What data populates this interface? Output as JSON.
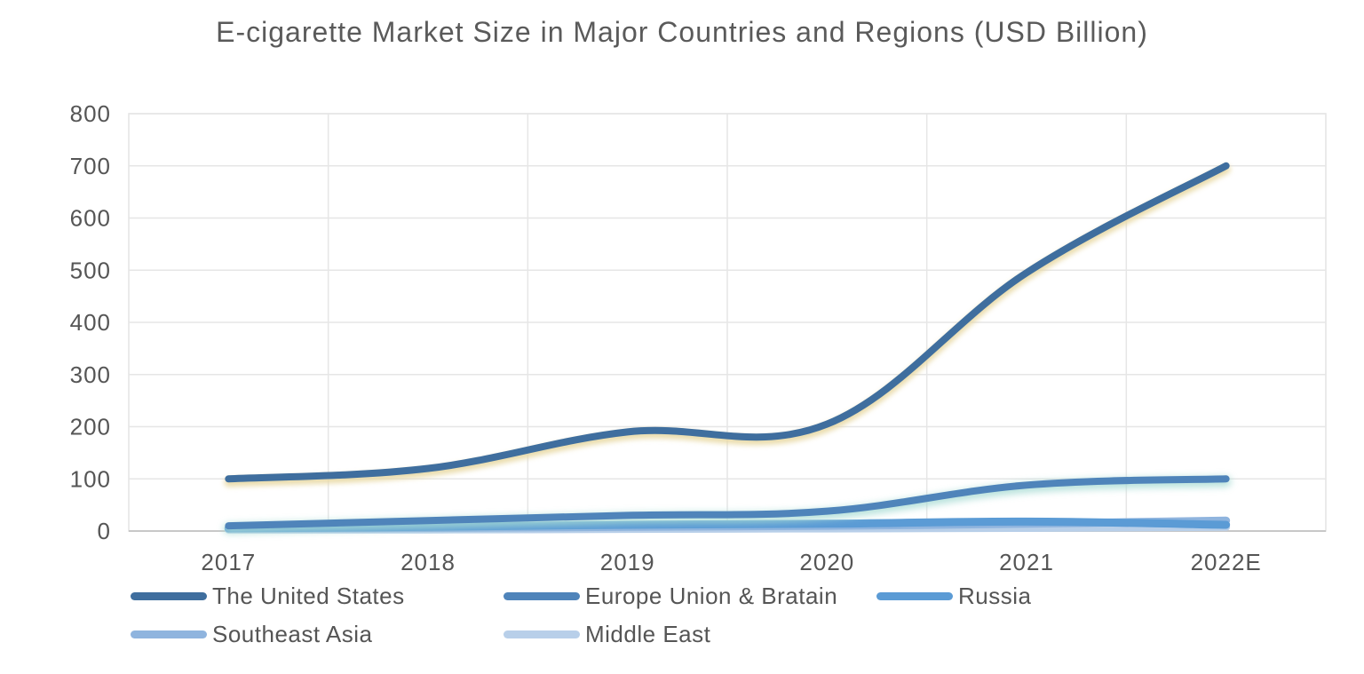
{
  "chart_data": {
    "type": "line",
    "title": "E-cigarette Market Size in Major Countries and Regions (USD Billion)",
    "xlabel": "",
    "ylabel": "",
    "categories": [
      "2017",
      "2018",
      "2019",
      "2020",
      "2021",
      "2022E"
    ],
    "ylim": [
      0,
      800
    ],
    "yticks": [
      0,
      100,
      200,
      300,
      400,
      500,
      600,
      700,
      800
    ],
    "grid": true,
    "legend_position": "bottom",
    "series": [
      {
        "name": "The United States",
        "color": "#3f6e9e",
        "values": [
          100,
          120,
          190,
          205,
          495,
          700
        ]
      },
      {
        "name": "Europe Union & Bratain",
        "color": "#4f84ba",
        "values": [
          10,
          20,
          30,
          38,
          88,
          100
        ]
      },
      {
        "name": "Russia",
        "color": "#5b9bd5",
        "values": [
          5,
          8,
          12,
          14,
          18,
          12
        ]
      },
      {
        "name": "Southeast Asia",
        "color": "#8fb4de",
        "values": [
          5,
          6,
          8,
          10,
          14,
          20
        ]
      },
      {
        "name": "Middle East",
        "color": "#b8cfe9",
        "values": [
          3,
          3,
          4,
          5,
          6,
          8
        ]
      }
    ]
  }
}
